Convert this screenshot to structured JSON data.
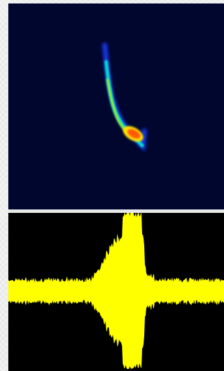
{
  "chart_data": [
    {
      "type": "heatmap",
      "title": "",
      "xlabel": "",
      "ylabel": "",
      "grid": false,
      "colors": {
        "background": "#00062e",
        "low": "#1a3cff",
        "mid_low": "#00e0d0",
        "mid": "#8ef03a",
        "mid_high": "#ffe000",
        "high": "#ff5a00"
      }
    },
    {
      "type": "area",
      "title": "",
      "xlabel": "",
      "ylabel": "",
      "grid": false,
      "colors": {
        "background": "#000000",
        "signal": "#ffff00"
      }
    }
  ]
}
